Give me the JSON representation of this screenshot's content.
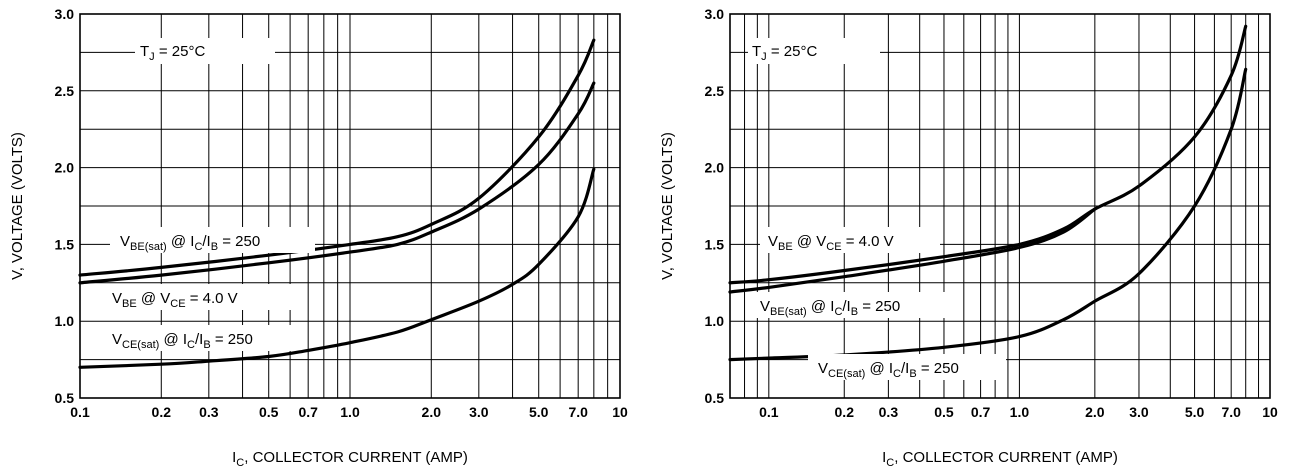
{
  "chart_data": [
    {
      "type": "line",
      "xlabel_main": "I",
      "xlabel_sub": "C",
      "xlabel_rest": ", COLLECTOR CURRENT (AMP)",
      "ylabel": "V, VOLTAGE (VOLTS)",
      "xscale": "log",
      "xlim": [
        0.1,
        10
      ],
      "ylim": [
        0.5,
        3.0
      ],
      "grid": true,
      "x_tick_labels": [
        "0.1",
        "0.2",
        "0.3",
        "0.5",
        "0.7",
        "1.0",
        "2.0",
        "3.0",
        "5.0",
        "7.0",
        "10"
      ],
      "y_tick_labels": [
        "0.5",
        "1.0",
        "1.5",
        "2.0",
        "2.5",
        "3.0"
      ],
      "temperature_label": {
        "main": "T",
        "sub": "J",
        "rest": " = 25°C"
      },
      "series": [
        {
          "name": "V_BE(sat) @ I_C/I_B = 250",
          "label_parts": [
            [
              "V",
              ""
            ],
            [
              "BE(sat)",
              "sub"
            ],
            [
              " @ I",
              ""
            ],
            [
              "C",
              "sub"
            ],
            [
              "/I",
              ""
            ],
            [
              "B",
              "sub"
            ],
            [
              " = 250",
              ""
            ]
          ],
          "x": [
            0.1,
            0.2,
            0.5,
            1.0,
            1.5,
            2.0,
            3.0,
            5.0,
            7.0,
            8.0
          ],
          "y": [
            1.3,
            1.35,
            1.43,
            1.5,
            1.55,
            1.63,
            1.8,
            2.2,
            2.6,
            2.83
          ]
        },
        {
          "name": "V_BE @ V_CE = 4.0 V",
          "label_parts": [
            [
              "V",
              ""
            ],
            [
              "BE",
              "sub"
            ],
            [
              " @ V",
              ""
            ],
            [
              "CE",
              "sub"
            ],
            [
              " = 4.0 V",
              ""
            ]
          ],
          "x": [
            0.1,
            0.2,
            0.5,
            1.0,
            1.5,
            2.0,
            3.0,
            5.0,
            7.0,
            8.0
          ],
          "y": [
            1.25,
            1.3,
            1.38,
            1.45,
            1.5,
            1.58,
            1.73,
            2.02,
            2.35,
            2.55
          ]
        },
        {
          "name": "V_CE(sat) @ I_C/I_B = 250",
          "label_parts": [
            [
              "V",
              ""
            ],
            [
              "CE(sat)",
              "sub"
            ],
            [
              " @ I",
              ""
            ],
            [
              "C",
              "sub"
            ],
            [
              "/I",
              ""
            ],
            [
              "B",
              "sub"
            ],
            [
              " = 250",
              ""
            ]
          ],
          "x": [
            0.1,
            0.2,
            0.3,
            0.5,
            0.7,
            1.0,
            1.5,
            2.0,
            3.0,
            4.0,
            5.0,
            7.0,
            8.0
          ],
          "y": [
            0.7,
            0.72,
            0.74,
            0.77,
            0.81,
            0.86,
            0.93,
            1.01,
            1.13,
            1.24,
            1.37,
            1.68,
            1.99
          ]
        }
      ]
    },
    {
      "type": "line",
      "xlabel_main": "I",
      "xlabel_sub": "C",
      "xlabel_rest": ", COLLECTOR CURRENT (AMP)",
      "ylabel": "V, VOLTAGE (VOLTS)",
      "xscale": "log",
      "xlim": [
        0.07,
        10
      ],
      "ylim": [
        0.5,
        3.0
      ],
      "grid": true,
      "x_tick_labels": [
        "0.1",
        "0.2",
        "0.3",
        "0.5",
        "0.7",
        "1.0",
        "2.0",
        "3.0",
        "5.0",
        "7.0",
        "10"
      ],
      "y_tick_labels": [
        "0.5",
        "1.0",
        "1.5",
        "2.0",
        "2.5",
        "3.0"
      ],
      "temperature_label": {
        "main": "T",
        "sub": "J",
        "rest": " = 25°C"
      },
      "series": [
        {
          "name": "V_BE @ V_CE = 4.0 V",
          "label_parts": [
            [
              "V",
              ""
            ],
            [
              "BE",
              "sub"
            ],
            [
              " @ V",
              ""
            ],
            [
              "CE",
              "sub"
            ],
            [
              " = 4.0 V",
              ""
            ]
          ],
          "x": [
            0.07,
            0.1,
            0.2,
            0.5,
            1.0,
            1.5,
            2.0,
            3.0,
            5.0,
            7.0,
            8.0
          ],
          "y": [
            1.25,
            1.27,
            1.33,
            1.42,
            1.5,
            1.6,
            1.73,
            1.88,
            2.2,
            2.6,
            2.92
          ]
        },
        {
          "name": "V_BE(sat) @ I_C/I_B = 250",
          "label_parts": [
            [
              "V",
              ""
            ],
            [
              "BE(sat)",
              "sub"
            ],
            [
              " @ I",
              ""
            ],
            [
              "C",
              "sub"
            ],
            [
              "/I",
              ""
            ],
            [
              "B",
              "sub"
            ],
            [
              " = 250",
              ""
            ]
          ],
          "x": [
            0.07,
            0.1,
            0.2,
            0.5,
            1.0,
            1.5,
            2.0
          ],
          "y": [
            1.19,
            1.22,
            1.29,
            1.39,
            1.48,
            1.58,
            1.73
          ]
        },
        {
          "name": "V_CE(sat) @ I_C/I_B = 250",
          "label_parts": [
            [
              "V",
              ""
            ],
            [
              "CE(sat)",
              "sub"
            ],
            [
              " @ I",
              ""
            ],
            [
              "C",
              "sub"
            ],
            [
              "/I",
              ""
            ],
            [
              "B",
              "sub"
            ],
            [
              " = 250",
              ""
            ]
          ],
          "x": [
            0.07,
            0.1,
            0.2,
            0.5,
            1.0,
            1.5,
            2.0,
            3.0,
            5.0,
            7.0,
            8.0
          ],
          "y": [
            0.75,
            0.76,
            0.78,
            0.83,
            0.9,
            1.01,
            1.13,
            1.31,
            1.75,
            2.25,
            2.64
          ]
        }
      ]
    }
  ]
}
